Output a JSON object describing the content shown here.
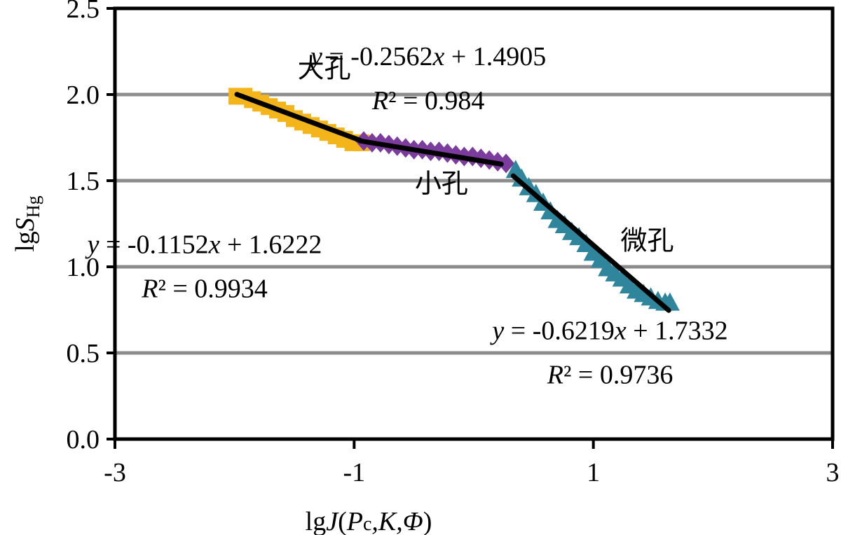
{
  "chart_data": {
    "type": "scatter",
    "xlabel": {
      "prefix": "lg",
      "j": "J",
      "open": "(",
      "pc": "P",
      "pc_sub": "c",
      "k": ",K,",
      "phi": "Φ",
      "close": ")"
    },
    "ylabel": {
      "prefix": "lg",
      "s": "S",
      "sub": "Hg"
    },
    "xlim": [
      -3,
      3
    ],
    "ylim": [
      0,
      2.5
    ],
    "x_ticks": [
      "-3",
      "-1",
      "1",
      "3"
    ],
    "x_tick_values": [
      -3,
      -1,
      1,
      3
    ],
    "y_ticks": [
      "0.0",
      "0.5",
      "1.0",
      "1.5",
      "2.0",
      "2.5"
    ],
    "y_tick_values": [
      0,
      0.5,
      1.0,
      1.5,
      2.0,
      2.5
    ],
    "grid": "horizontal",
    "series": [
      {
        "zone": "大孔",
        "marker": "square",
        "color": "#F3B51A",
        "x": [
          -1.98,
          -1.92,
          -1.85,
          -1.78,
          -1.71,
          -1.64,
          -1.57,
          -1.5,
          -1.43,
          -1.36,
          -1.29,
          -1.22,
          -1.15,
          -1.08,
          -1.01,
          -0.94
        ],
        "y": [
          1.99,
          1.99,
          1.97,
          1.95,
          1.93,
          1.91,
          1.89,
          1.86,
          1.84,
          1.82,
          1.8,
          1.78,
          1.76,
          1.74,
          1.72,
          1.72
        ],
        "fit": {
          "x": [
            -1.98,
            -0.95
          ],
          "y": [
            2.001,
            1.734
          ]
        }
      },
      {
        "zone": "小孔",
        "marker": "diamond",
        "color": "#7B3C9E",
        "x": [
          -0.92,
          -0.85,
          -0.78,
          -0.71,
          -0.64,
          -0.57,
          -0.5,
          -0.43,
          -0.36,
          -0.29,
          -0.22,
          -0.15,
          -0.08,
          -0.01,
          0.06,
          0.13,
          0.2,
          0.27
        ],
        "y": [
          1.73,
          1.72,
          1.72,
          1.71,
          1.7,
          1.69,
          1.68,
          1.68,
          1.67,
          1.67,
          1.66,
          1.65,
          1.64,
          1.64,
          1.63,
          1.62,
          1.61,
          1.6
        ],
        "fit": {
          "x": [
            -0.95,
            0.23
          ],
          "y": [
            1.731,
            1.596
          ]
        }
      },
      {
        "zone": "微孔",
        "marker": "triangle",
        "color": "#2F869C",
        "x": [
          0.35,
          0.4,
          0.46,
          0.52,
          0.58,
          0.64,
          0.7,
          0.76,
          0.82,
          0.88,
          0.94,
          1.0,
          1.06,
          1.12,
          1.18,
          1.24,
          1.3,
          1.36,
          1.42,
          1.48,
          1.54,
          1.6,
          1.64
        ],
        "y": [
          1.56,
          1.51,
          1.46,
          1.42,
          1.37,
          1.32,
          1.27,
          1.24,
          1.2,
          1.17,
          1.13,
          1.08,
          1.04,
          0.99,
          0.96,
          0.93,
          0.89,
          0.86,
          0.84,
          0.82,
          0.8,
          0.79,
          0.79
        ],
        "fit": {
          "x": [
            0.33,
            1.63
          ],
          "y": [
            1.528,
            0.747
          ]
        }
      }
    ],
    "annotations": [
      {
        "id": "eq-small",
        "y_var": "y",
        "eq": " = -0.1152",
        "x_var": "x",
        "rest": " + 1.6222",
        "r2": "R² = 0.9934",
        "at_data": [
          -2.25,
          1.08
        ]
      },
      {
        "id": "eq-macro",
        "y_var": "y",
        "eq": " = -0.2562",
        "x_var": "x",
        "rest": " + 1.4905",
        "r2": "R² = 0.984",
        "at_data": [
          -0.38,
          2.17
        ]
      },
      {
        "id": "eq-micro",
        "y_var": "y",
        "eq": " = -0.6219",
        "x_var": "x",
        "rest": " + 1.7332",
        "r2": "R² = 0.9736",
        "at_data": [
          1.14,
          0.58
        ]
      }
    ],
    "zone_labels": [
      {
        "text": "大孔",
        "at_data": [
          -1.25,
          2.1
        ]
      },
      {
        "text": "小孔",
        "at_data": [
          -0.27,
          1.43
        ]
      },
      {
        "text": "微孔",
        "at_data": [
          1.45,
          1.1
        ]
      }
    ]
  }
}
